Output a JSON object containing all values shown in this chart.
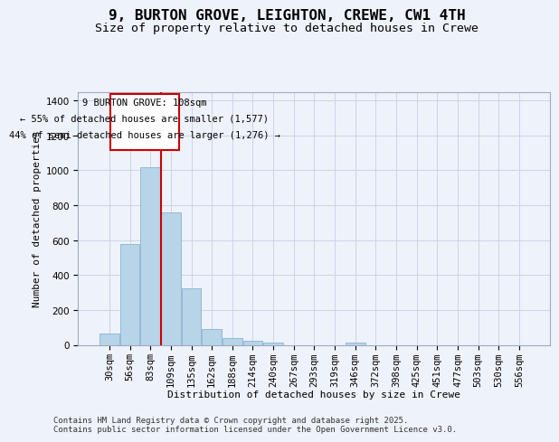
{
  "title": "9, BURTON GROVE, LEIGHTON, CREWE, CW1 4TH",
  "subtitle": "Size of property relative to detached houses in Crewe",
  "xlabel": "Distribution of detached houses by size in Crewe",
  "ylabel": "Number of detached properties",
  "categories": [
    "30sqm",
    "56sqm",
    "83sqm",
    "109sqm",
    "135sqm",
    "162sqm",
    "188sqm",
    "214sqm",
    "240sqm",
    "267sqm",
    "293sqm",
    "319sqm",
    "346sqm",
    "372sqm",
    "398sqm",
    "425sqm",
    "451sqm",
    "477sqm",
    "503sqm",
    "530sqm",
    "556sqm"
  ],
  "values": [
    65,
    580,
    1020,
    760,
    325,
    90,
    38,
    22,
    12,
    0,
    0,
    0,
    12,
    0,
    0,
    0,
    0,
    0,
    0,
    0,
    0
  ],
  "bar_color": "#b8d4e8",
  "bar_edge_color": "#7aaac8",
  "background_color": "#eef2fa",
  "grid_color": "#ccd4e4",
  "annotation_box_color": "#cc0000",
  "annotation_line_color": "#cc0000",
  "annotation_title": "9 BURTON GROVE: 108sqm",
  "annotation_line1": "← 55% of detached houses are smaller (1,577)",
  "annotation_line2": "44% of semi-detached houses are larger (1,276) →",
  "ylim": [
    0,
    1450
  ],
  "yticks": [
    0,
    200,
    400,
    600,
    800,
    1000,
    1200,
    1400
  ],
  "footer_line1": "Contains HM Land Registry data © Crown copyright and database right 2025.",
  "footer_line2": "Contains public sector information licensed under the Open Government Licence v3.0.",
  "title_fontsize": 11.5,
  "subtitle_fontsize": 9.5,
  "axis_label_fontsize": 8,
  "tick_fontsize": 7.5,
  "annotation_fontsize": 7.5,
  "footer_fontsize": 6.5
}
